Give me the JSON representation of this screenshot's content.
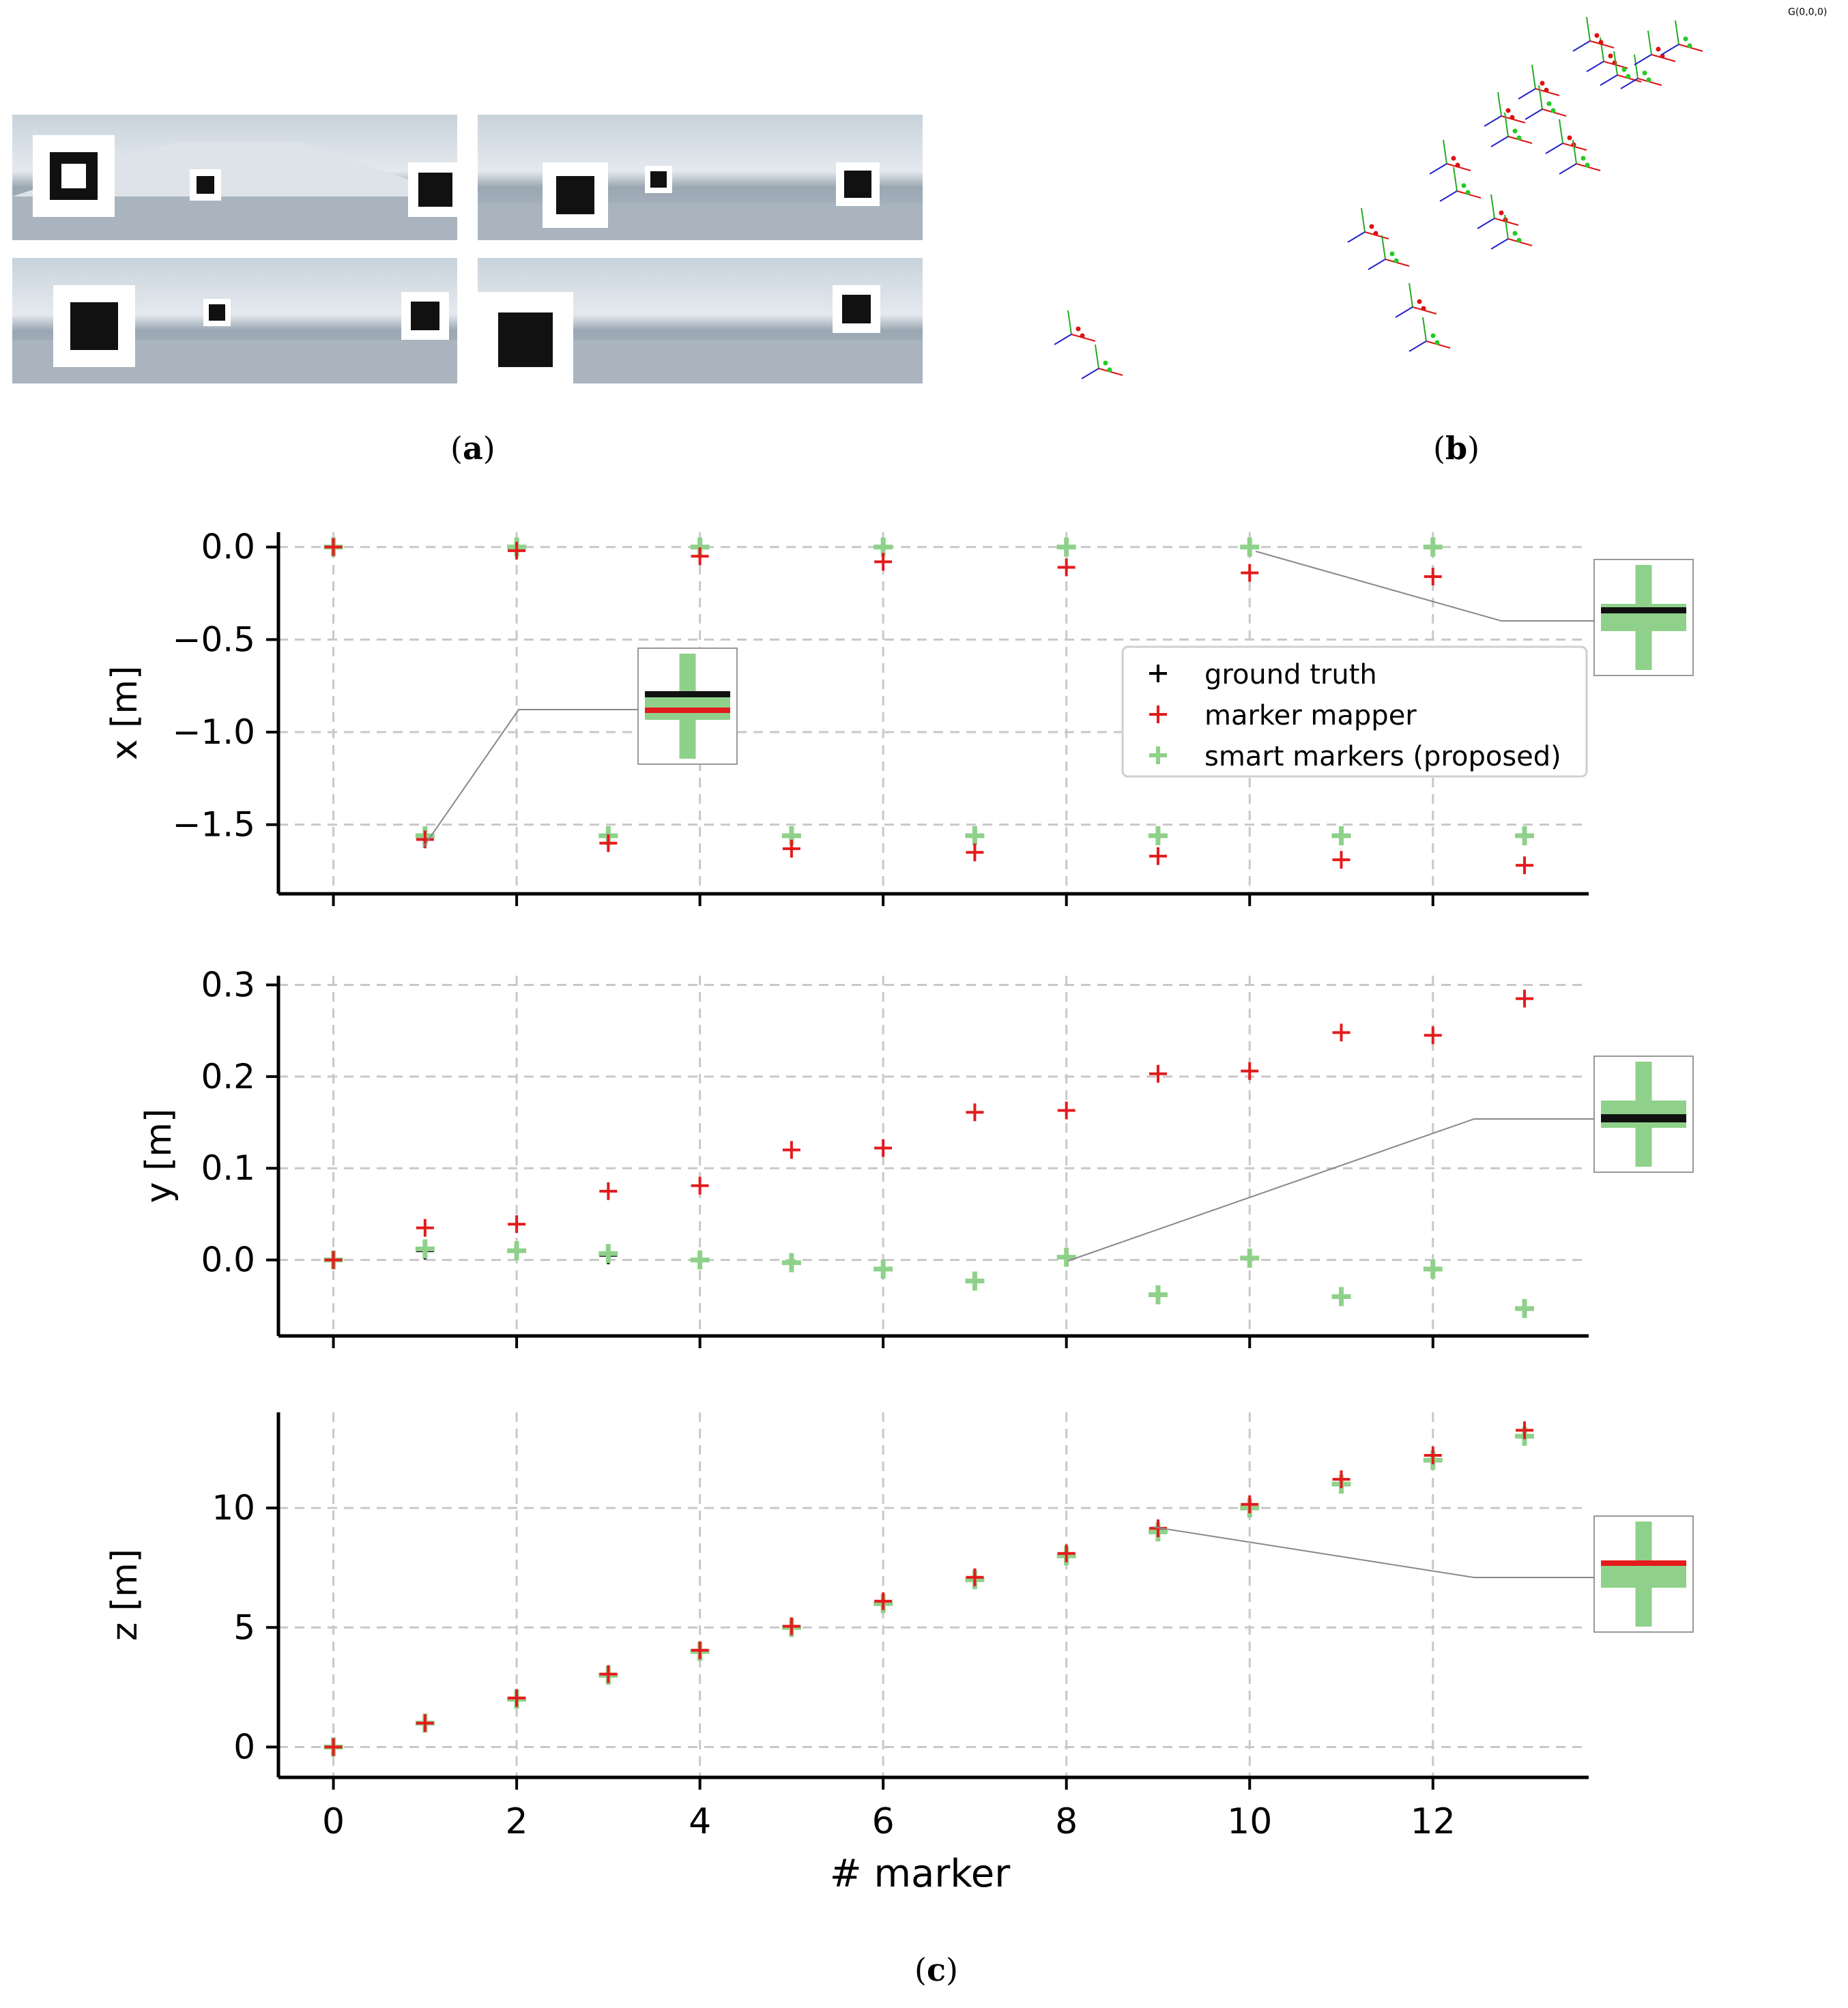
{
  "figure": {
    "captions": {
      "a": "a",
      "b": "b",
      "c": "c"
    },
    "pose_plot": {
      "origin_label": "G(0,0,0)"
    }
  },
  "chart_data": {
    "type": "scatter",
    "xlabel": "# marker",
    "x_ticks": [
      0,
      2,
      4,
      6,
      8,
      10,
      12
    ],
    "xlim": [
      -0.6,
      13.7
    ],
    "grid": true,
    "legend": {
      "placement": "right",
      "entries": [
        {
          "name": "ground truth",
          "color": "#000000"
        },
        {
          "name": "marker mapper",
          "color": "#e41a1c"
        },
        {
          "name": "smart markers (proposed)",
          "color": "#8fd18a"
        }
      ]
    },
    "panels": [
      {
        "ylabel": "x [m]",
        "ylim": [
          -1.8,
          0.08
        ],
        "y_ticks": [
          0.0,
          -0.5,
          -1.0,
          -1.5
        ],
        "y_tick_labels": [
          "0.0",
          "−0.5",
          "−1.0",
          "−1.5"
        ],
        "series": [
          {
            "name": "ground truth",
            "x": [
              0,
              1,
              2,
              3,
              4,
              5,
              6,
              7,
              8,
              9,
              10,
              11,
              12,
              13
            ],
            "y": [
              0.0,
              -1.56,
              0.0,
              -1.56,
              0.0,
              -1.56,
              0.0,
              -1.56,
              0.0,
              -1.56,
              0.0,
              -1.56,
              0.0,
              -1.56
            ]
          },
          {
            "name": "marker mapper",
            "x": [
              0,
              1,
              2,
              3,
              4,
              5,
              6,
              7,
              8,
              9,
              10,
              11,
              12,
              13
            ],
            "y": [
              0.0,
              -1.58,
              -0.02,
              -1.6,
              -0.05,
              -1.63,
              -0.08,
              -1.65,
              -0.11,
              -1.67,
              -0.14,
              -1.69,
              -0.16,
              -1.72
            ]
          },
          {
            "name": "smart markers (proposed)",
            "x": [
              0,
              1,
              2,
              3,
              4,
              5,
              6,
              7,
              8,
              9,
              10,
              11,
              12,
              13
            ],
            "y": [
              0.0,
              -1.56,
              0.0,
              -1.56,
              0.0,
              -1.56,
              0.0,
              -1.56,
              0.0,
              -1.56,
              0.0,
              -1.56,
              0.0,
              -1.56
            ]
          }
        ]
      },
      {
        "ylabel": "y [m]",
        "ylim": [
          -0.068,
          0.31
        ],
        "y_ticks": [
          0.3,
          0.2,
          0.1,
          0.0
        ],
        "y_tick_labels": [
          "0.3",
          "0.2",
          "0.1",
          "0.0"
        ],
        "series": [
          {
            "name": "ground truth",
            "x": [
              0,
              1,
              2,
              3,
              4,
              5,
              6,
              7,
              8,
              9,
              10,
              11,
              12,
              13
            ],
            "y": [
              0.0,
              0.01,
              0.01,
              0.005,
              0.0,
              -0.003,
              -0.01,
              -0.023,
              0.003,
              -0.038,
              0.002,
              -0.04,
              -0.01,
              -0.053
            ]
          },
          {
            "name": "marker mapper",
            "x": [
              0,
              1,
              2,
              3,
              4,
              5,
              6,
              7,
              8,
              9,
              10,
              11,
              12,
              13
            ],
            "y": [
              0.0,
              0.035,
              0.039,
              0.075,
              0.081,
              0.12,
              0.122,
              0.161,
              0.163,
              0.203,
              0.206,
              0.248,
              0.245,
              0.285
            ]
          },
          {
            "name": "smart markers (proposed)",
            "x": [
              0,
              1,
              2,
              3,
              4,
              5,
              6,
              7,
              8,
              9,
              10,
              11,
              12,
              13
            ],
            "y": [
              0.0,
              0.012,
              0.01,
              0.007,
              0.0,
              -0.003,
              -0.01,
              -0.023,
              0.003,
              -0.038,
              0.002,
              -0.04,
              -0.01,
              -0.053
            ]
          }
        ]
      },
      {
        "ylabel": "z [m]",
        "ylim": [
          -0.7,
          14.0
        ],
        "y_ticks": [
          10,
          5,
          0
        ],
        "y_tick_labels": [
          "10",
          "5",
          "0"
        ],
        "series": [
          {
            "name": "ground truth",
            "x": [
              0,
              1,
              2,
              3,
              4,
              5,
              6,
              7,
              8,
              9,
              10,
              11,
              12,
              13
            ],
            "y": [
              0,
              1,
              2,
              3,
              4,
              5,
              6,
              7,
              8,
              9,
              10,
              11,
              12,
              13
            ]
          },
          {
            "name": "marker mapper",
            "x": [
              0,
              1,
              2,
              3,
              4,
              5,
              6,
              7,
              8,
              9,
              10,
              11,
              12,
              13
            ],
            "y": [
              0,
              1.0,
              2.05,
              3.05,
              4.05,
              5.05,
              6.1,
              7.1,
              8.1,
              9.15,
              10.15,
              11.2,
              12.2,
              13.25
            ]
          },
          {
            "name": "smart markers (proposed)",
            "x": [
              0,
              1,
              2,
              3,
              4,
              5,
              6,
              7,
              8,
              9,
              10,
              11,
              12,
              13
            ],
            "y": [
              0,
              1,
              2,
              3,
              4,
              5,
              6,
              7,
              8,
              9,
              10,
              11,
              12,
              13
            ]
          }
        ]
      }
    ]
  }
}
